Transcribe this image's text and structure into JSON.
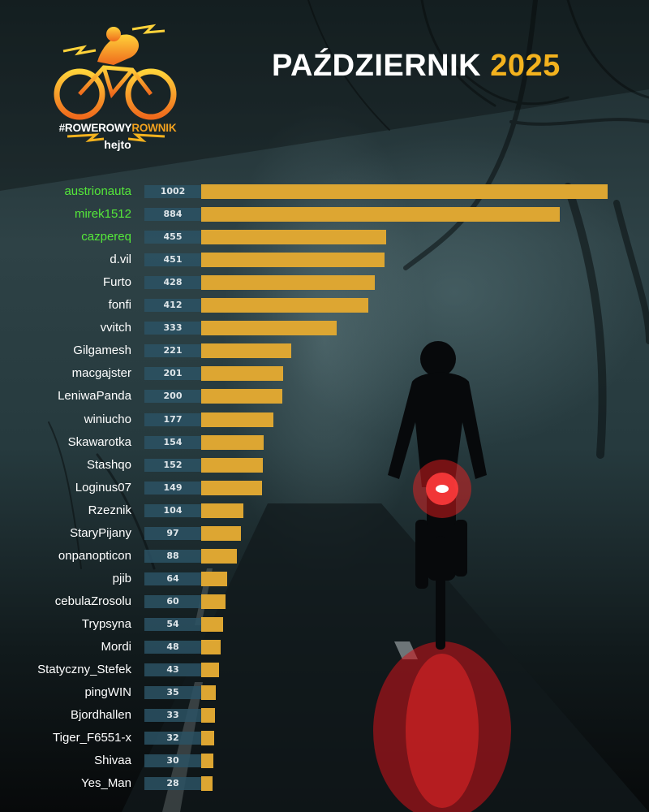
{
  "title": {
    "month": "PAŹDZIERNIK",
    "year": "2025"
  },
  "logo": {
    "hashtag_prefix": "#ROWEROWY",
    "hashtag_suffix": "ROWNIK",
    "brand": "hejto"
  },
  "colors": {
    "bar": "#dda632",
    "value_box": "#2b5264",
    "top3_name": "#55e83a",
    "title_year": "#f3b21e"
  },
  "chart_data": {
    "type": "bar",
    "orientation": "horizontal",
    "title": "PAŹDZIERNIK 2025",
    "xlim": [
      0,
      1002
    ],
    "categories": [
      "austrionauta",
      "mirek1512",
      "cazpereq",
      "d.vil",
      "Furto",
      "fonfi",
      "vvitch",
      "Gilgamesh",
      "macgajster",
      "LeniwaPanda",
      "winiucho",
      "Skawarotka",
      "Stashqo",
      "Loginus07",
      "Rzeznik",
      "StaryPijany",
      "onpanopticon",
      "pjib",
      "cebulaZrosolu",
      "Trypsyna",
      "Mordi",
      "Statyczny_Stefek",
      "pingWIN",
      "Bjordhallen",
      "Tiger_F6551-x",
      "Shivaa",
      "Yes_Man"
    ],
    "values": [
      1002,
      884,
      455,
      451,
      428,
      412,
      333,
      221,
      201,
      200,
      177,
      154,
      152,
      149,
      104,
      97,
      88,
      64,
      60,
      54,
      48,
      43,
      35,
      33,
      32,
      30,
      28
    ],
    "value_labels": [
      "1002",
      "884",
      "455",
      "451",
      "428",
      "412",
      "333",
      "221",
      "201",
      "200",
      "177",
      "154",
      "152",
      "149",
      "104",
      "97",
      "88",
      "64",
      "60",
      "54",
      "48",
      "43",
      "35",
      "33",
      "32",
      "30",
      "28"
    ],
    "highlighted_top": 3
  }
}
